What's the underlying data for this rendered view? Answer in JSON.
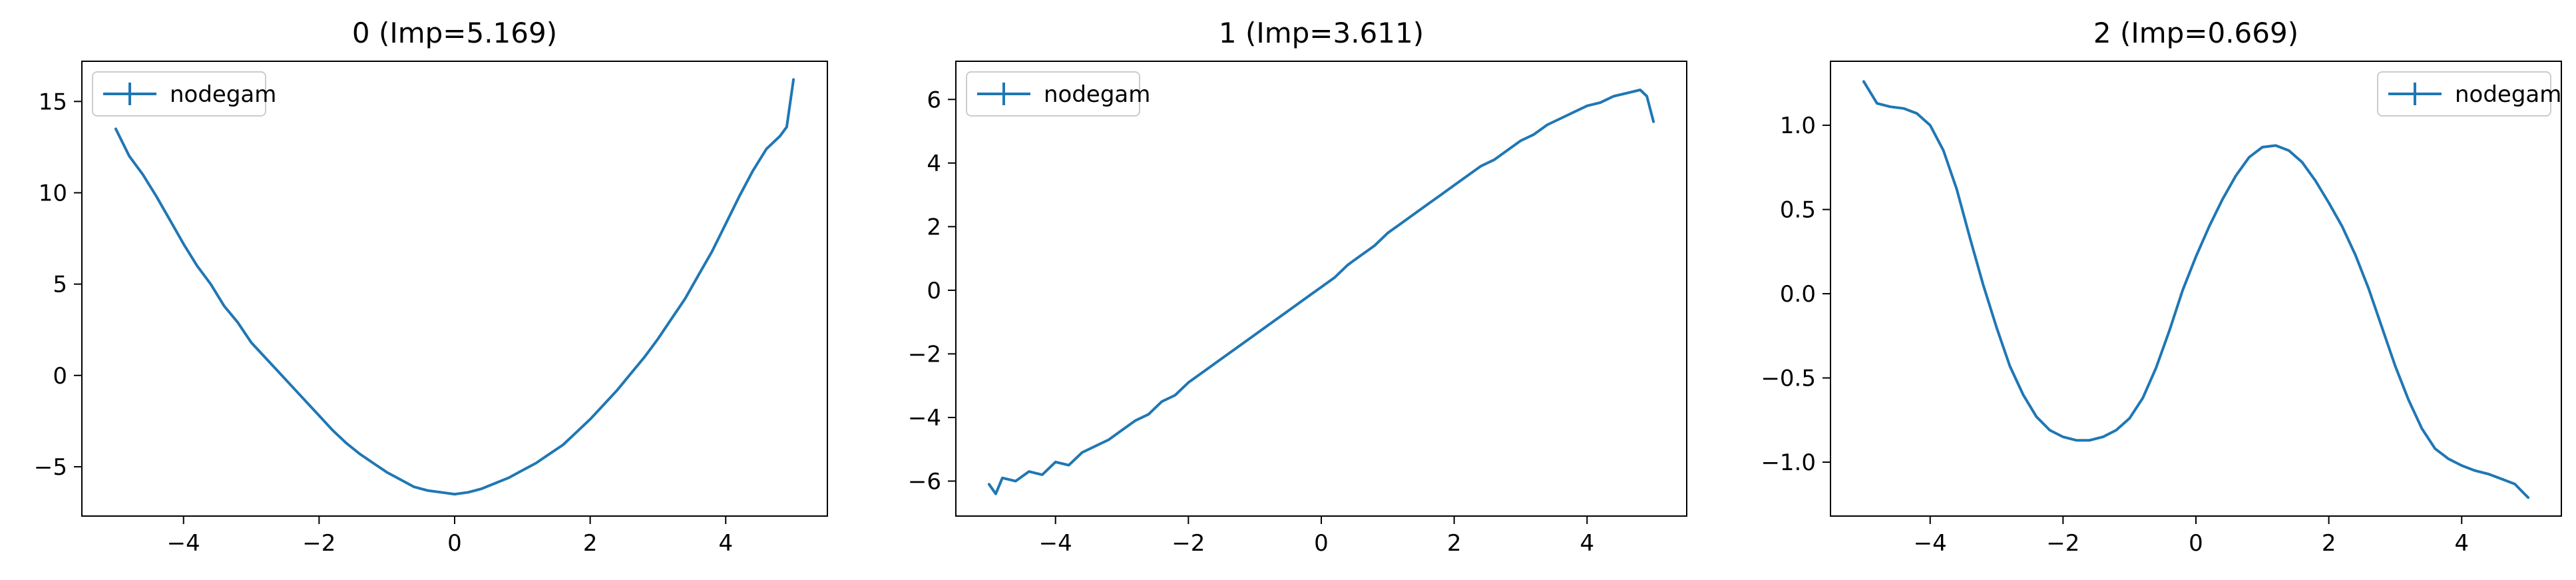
{
  "figure": {
    "line_color": "#1f77b4",
    "background": "#ffffff"
  },
  "chart_data": [
    {
      "type": "line",
      "title": "0 (Imp=5.169)",
      "xlabel": "",
      "ylabel": "",
      "xlim": [
        -5.5,
        5.5
      ],
      "ylim": [
        -7.7,
        17.2
      ],
      "xticks": [
        -4,
        -2,
        0,
        2,
        4
      ],
      "yticks": [
        -5,
        0,
        5,
        10,
        15
      ],
      "xtick_labels": [
        "−4",
        "−2",
        "0",
        "2",
        "4"
      ],
      "ytick_labels": [
        "−5",
        "0",
        "5",
        "10",
        "15"
      ],
      "legend": {
        "placement": "upper-left",
        "entries": [
          "nodegam"
        ]
      },
      "series": [
        {
          "name": "nodegam",
          "x": [
            -5.0,
            -4.8,
            -4.6,
            -4.4,
            -4.2,
            -4.0,
            -3.8,
            -3.6,
            -3.4,
            -3.2,
            -3.0,
            -2.8,
            -2.6,
            -2.4,
            -2.2,
            -2.0,
            -1.8,
            -1.6,
            -1.4,
            -1.2,
            -1.0,
            -0.8,
            -0.6,
            -0.4,
            -0.2,
            0.0,
            0.2,
            0.4,
            0.6,
            0.8,
            1.0,
            1.2,
            1.4,
            1.6,
            1.8,
            2.0,
            2.2,
            2.4,
            2.6,
            2.8,
            3.0,
            3.2,
            3.4,
            3.6,
            3.8,
            4.0,
            4.2,
            4.4,
            4.6,
            4.8,
            4.9,
            5.0
          ],
          "y": [
            13.5,
            12.0,
            11.0,
            9.8,
            8.5,
            7.2,
            6.0,
            5.0,
            3.8,
            2.9,
            1.8,
            1.0,
            0.2,
            -0.6,
            -1.4,
            -2.2,
            -3.0,
            -3.7,
            -4.3,
            -4.8,
            -5.3,
            -5.7,
            -6.1,
            -6.3,
            -6.4,
            -6.5,
            -6.4,
            -6.2,
            -5.9,
            -5.6,
            -5.2,
            -4.8,
            -4.3,
            -3.8,
            -3.1,
            -2.4,
            -1.6,
            -0.8,
            0.1,
            1.0,
            2.0,
            3.1,
            4.2,
            5.5,
            6.8,
            8.3,
            9.8,
            11.2,
            12.4,
            13.1,
            13.6,
            16.2
          ]
        }
      ]
    },
    {
      "type": "line",
      "title": "1 (Imp=3.611)",
      "xlabel": "",
      "ylabel": "",
      "xlim": [
        -5.5,
        5.5
      ],
      "ylim": [
        -7.1,
        7.2
      ],
      "xticks": [
        -4,
        -2,
        0,
        2,
        4
      ],
      "yticks": [
        -6,
        -4,
        -2,
        0,
        2,
        4,
        6
      ],
      "xtick_labels": [
        "−4",
        "−2",
        "0",
        "2",
        "4"
      ],
      "ytick_labels": [
        "−6",
        "−4",
        "−2",
        "0",
        "2",
        "4",
        "6"
      ],
      "legend": {
        "placement": "upper-left",
        "entries": [
          "nodegam"
        ]
      },
      "series": [
        {
          "name": "nodegam",
          "x": [
            -5.0,
            -4.9,
            -4.8,
            -4.6,
            -4.4,
            -4.2,
            -4.0,
            -3.8,
            -3.6,
            -3.4,
            -3.2,
            -3.0,
            -2.8,
            -2.6,
            -2.4,
            -2.2,
            -2.0,
            -1.8,
            -1.6,
            -1.4,
            -1.2,
            -1.0,
            -0.8,
            -0.6,
            -0.4,
            -0.2,
            0.0,
            0.2,
            0.4,
            0.6,
            0.8,
            1.0,
            1.2,
            1.4,
            1.6,
            1.8,
            2.0,
            2.2,
            2.4,
            2.6,
            2.8,
            3.0,
            3.2,
            3.4,
            3.6,
            3.8,
            4.0,
            4.2,
            4.4,
            4.6,
            4.8,
            4.9,
            5.0
          ],
          "y": [
            -6.1,
            -6.4,
            -5.9,
            -6.0,
            -5.7,
            -5.8,
            -5.4,
            -5.5,
            -5.1,
            -4.9,
            -4.7,
            -4.4,
            -4.1,
            -3.9,
            -3.5,
            -3.3,
            -2.9,
            -2.6,
            -2.3,
            -2.0,
            -1.7,
            -1.4,
            -1.1,
            -0.8,
            -0.5,
            -0.2,
            0.1,
            0.4,
            0.8,
            1.1,
            1.4,
            1.8,
            2.1,
            2.4,
            2.7,
            3.0,
            3.3,
            3.6,
            3.9,
            4.1,
            4.4,
            4.7,
            4.9,
            5.2,
            5.4,
            5.6,
            5.8,
            5.9,
            6.1,
            6.2,
            6.3,
            6.1,
            5.3
          ]
        }
      ]
    },
    {
      "type": "line",
      "title": "2 (Imp=0.669)",
      "xlabel": "",
      "ylabel": "",
      "xlim": [
        -5.5,
        5.5
      ],
      "ylim": [
        -1.32,
        1.38
      ],
      "xticks": [
        -4,
        -2,
        0,
        2,
        4
      ],
      "yticks": [
        -1.0,
        -0.5,
        0.0,
        0.5,
        1.0
      ],
      "xtick_labels": [
        "−4",
        "−2",
        "0",
        "2",
        "4"
      ],
      "ytick_labels": [
        "−1.0",
        "−0.5",
        "0.0",
        "0.5",
        "1.0"
      ],
      "legend": {
        "placement": "upper-right",
        "entries": [
          "nodegam"
        ]
      },
      "series": [
        {
          "name": "nodegam",
          "x": [
            -5.0,
            -4.8,
            -4.6,
            -4.4,
            -4.2,
            -4.0,
            -3.8,
            -3.6,
            -3.4,
            -3.2,
            -3.0,
            -2.8,
            -2.6,
            -2.4,
            -2.2,
            -2.0,
            -1.8,
            -1.6,
            -1.4,
            -1.2,
            -1.0,
            -0.8,
            -0.6,
            -0.4,
            -0.2,
            0.0,
            0.2,
            0.4,
            0.6,
            0.8,
            1.0,
            1.2,
            1.4,
            1.6,
            1.8,
            2.0,
            2.2,
            2.4,
            2.6,
            2.8,
            3.0,
            3.2,
            3.4,
            3.6,
            3.8,
            4.0,
            4.2,
            4.4,
            4.6,
            4.8,
            4.9,
            5.0
          ],
          "y": [
            1.26,
            1.13,
            1.11,
            1.1,
            1.07,
            1.0,
            0.85,
            0.62,
            0.33,
            0.05,
            -0.2,
            -0.43,
            -0.6,
            -0.73,
            -0.81,
            -0.85,
            -0.87,
            -0.87,
            -0.85,
            -0.81,
            -0.74,
            -0.62,
            -0.44,
            -0.22,
            0.02,
            0.22,
            0.4,
            0.56,
            0.7,
            0.81,
            0.87,
            0.88,
            0.85,
            0.78,
            0.67,
            0.54,
            0.4,
            0.23,
            0.03,
            -0.2,
            -0.43,
            -0.63,
            -0.8,
            -0.92,
            -0.98,
            -1.02,
            -1.05,
            -1.07,
            -1.1,
            -1.13,
            -1.17,
            -1.21
          ]
        }
      ]
    }
  ]
}
